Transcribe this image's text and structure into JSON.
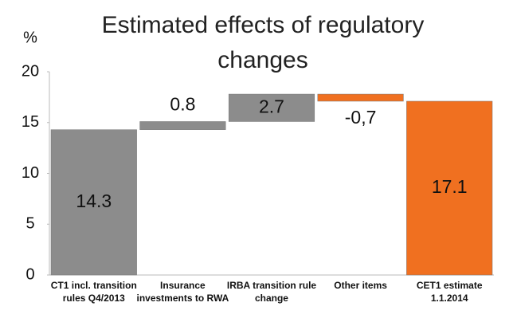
{
  "chart_data": {
    "type": "waterfall",
    "title": "Estimated effects of regulatory changes",
    "y_label": "%",
    "categories": [
      "CT1 incl. transition rules Q4/2013",
      "Insurance investments to RWA",
      "IRBA transition rule change",
      "Other items",
      "CET1 estimate 1.1.2014"
    ],
    "values": [
      14.3,
      0.8,
      2.7,
      -0.7,
      17.1
    ],
    "value_labels": [
      "14.3",
      "0.8",
      "2.7",
      "-0,7",
      "17.1"
    ],
    "measure": [
      "absolute",
      "relative",
      "relative",
      "relative",
      "total"
    ],
    "colors": [
      "#8c8c8c",
      "#8c8c8c",
      "#8c8c8c",
      "#f07020",
      "#f07020"
    ],
    "ylim": [
      0,
      20
    ],
    "yticks": [
      0,
      5,
      10,
      15,
      20
    ],
    "grid": false
  }
}
